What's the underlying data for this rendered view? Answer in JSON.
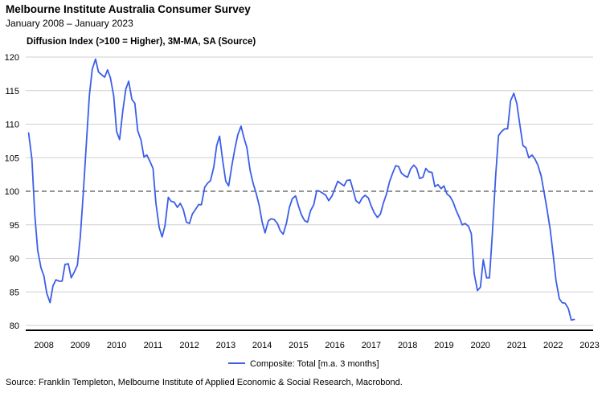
{
  "header": {
    "title": "Melbourne Institute Australia Consumer Survey",
    "subtitle": "January 2008 – January 2023",
    "axis_caption": "Diffusion Index (>100 = Higher), 3M-MA, SA (Source)"
  },
  "footer": {
    "source": "Source: Franklin Templeton, Melbourne Institute of Applied Economic & Social Research, Macrobond."
  },
  "colors": {
    "series": "#3b5ee8",
    "reference": "#555555",
    "grid": "#cfcfcf",
    "axis": "#000000"
  },
  "chart_data": {
    "type": "line",
    "title": "Melbourne Institute Australia Consumer Survey",
    "xlabel": "",
    "ylabel": "Diffusion Index (>100 = Higher), 3M-MA, SA (Source)",
    "xlim": [
      2007.5,
      2023.1
    ],
    "ylim": [
      80,
      120
    ],
    "yticks": [
      80,
      85,
      90,
      95,
      100,
      105,
      110,
      115,
      120
    ],
    "xticks": [
      2008,
      2009,
      2010,
      2011,
      2012,
      2013,
      2014,
      2015,
      2016,
      2017,
      2018,
      2019,
      2020,
      2021,
      2022,
      2023
    ],
    "reference_line": {
      "y": 100,
      "style": "dashed"
    },
    "legend": {
      "position": "bottom-center"
    },
    "series": [
      {
        "name": "Composite: Total [m.a. 3 months]",
        "points": [
          [
            2007.58,
            108.7
          ],
          [
            2007.67,
            104.8
          ],
          [
            2007.75,
            96.5
          ],
          [
            2007.83,
            91.2
          ],
          [
            2007.92,
            88.6
          ],
          [
            2008.0,
            87.4
          ],
          [
            2008.08,
            84.8
          ],
          [
            2008.17,
            83.4
          ],
          [
            2008.25,
            85.9
          ],
          [
            2008.33,
            86.8
          ],
          [
            2008.42,
            86.6
          ],
          [
            2008.5,
            86.6
          ],
          [
            2008.58,
            89.1
          ],
          [
            2008.67,
            89.2
          ],
          [
            2008.75,
            87.1
          ],
          [
            2008.83,
            87.9
          ],
          [
            2008.92,
            89.0
          ],
          [
            2009.0,
            93.2
          ],
          [
            2009.08,
            99.5
          ],
          [
            2009.17,
            107.4
          ],
          [
            2009.25,
            114.3
          ],
          [
            2009.33,
            118.2
          ],
          [
            2009.42,
            119.7
          ],
          [
            2009.5,
            117.8
          ],
          [
            2009.58,
            117.4
          ],
          [
            2009.67,
            117.0
          ],
          [
            2009.75,
            118.1
          ],
          [
            2009.83,
            116.9
          ],
          [
            2009.92,
            114.2
          ],
          [
            2010.0,
            108.9
          ],
          [
            2010.08,
            107.7
          ],
          [
            2010.17,
            112.0
          ],
          [
            2010.25,
            115.2
          ],
          [
            2010.33,
            116.4
          ],
          [
            2010.42,
            113.7
          ],
          [
            2010.5,
            113.1
          ],
          [
            2010.58,
            109.0
          ],
          [
            2010.67,
            107.6
          ],
          [
            2010.75,
            105.1
          ],
          [
            2010.83,
            105.4
          ],
          [
            2010.92,
            104.4
          ],
          [
            2011.0,
            103.4
          ],
          [
            2011.08,
            98.2
          ],
          [
            2011.17,
            94.6
          ],
          [
            2011.25,
            93.2
          ],
          [
            2011.33,
            94.9
          ],
          [
            2011.42,
            99.1
          ],
          [
            2011.5,
            98.5
          ],
          [
            2011.58,
            98.4
          ],
          [
            2011.67,
            97.6
          ],
          [
            2011.75,
            98.2
          ],
          [
            2011.83,
            97.3
          ],
          [
            2011.92,
            95.4
          ],
          [
            2012.0,
            95.2
          ],
          [
            2012.08,
            96.6
          ],
          [
            2012.17,
            97.3
          ],
          [
            2012.25,
            98.0
          ],
          [
            2012.33,
            98.0
          ],
          [
            2012.42,
            100.6
          ],
          [
            2012.5,
            101.2
          ],
          [
            2012.58,
            101.6
          ],
          [
            2012.67,
            103.6
          ],
          [
            2012.75,
            106.8
          ],
          [
            2012.83,
            108.2
          ],
          [
            2012.92,
            104.4
          ],
          [
            2013.0,
            101.5
          ],
          [
            2013.08,
            100.8
          ],
          [
            2013.17,
            103.9
          ],
          [
            2013.25,
            106.3
          ],
          [
            2013.33,
            108.4
          ],
          [
            2013.42,
            109.7
          ],
          [
            2013.5,
            108.0
          ],
          [
            2013.58,
            106.5
          ],
          [
            2013.67,
            103.1
          ],
          [
            2013.75,
            101.2
          ],
          [
            2013.83,
            99.8
          ],
          [
            2013.92,
            97.9
          ],
          [
            2014.0,
            95.4
          ],
          [
            2014.08,
            93.8
          ],
          [
            2014.17,
            95.6
          ],
          [
            2014.25,
            95.9
          ],
          [
            2014.33,
            95.8
          ],
          [
            2014.42,
            95.2
          ],
          [
            2014.5,
            94.1
          ],
          [
            2014.58,
            93.6
          ],
          [
            2014.67,
            95.3
          ],
          [
            2014.75,
            97.6
          ],
          [
            2014.83,
            98.9
          ],
          [
            2014.92,
            99.3
          ],
          [
            2015.0,
            97.8
          ],
          [
            2015.08,
            96.5
          ],
          [
            2015.17,
            95.6
          ],
          [
            2015.25,
            95.4
          ],
          [
            2015.33,
            97.1
          ],
          [
            2015.42,
            98.0
          ],
          [
            2015.5,
            100.1
          ],
          [
            2015.58,
            100.0
          ],
          [
            2015.67,
            99.7
          ],
          [
            2015.75,
            99.4
          ],
          [
            2015.83,
            98.6
          ],
          [
            2015.92,
            99.3
          ],
          [
            2016.0,
            100.4
          ],
          [
            2016.08,
            101.5
          ],
          [
            2016.17,
            101.1
          ],
          [
            2016.25,
            100.8
          ],
          [
            2016.33,
            101.6
          ],
          [
            2016.42,
            101.7
          ],
          [
            2016.5,
            100.2
          ],
          [
            2016.58,
            98.6
          ],
          [
            2016.67,
            98.2
          ],
          [
            2016.75,
            99.0
          ],
          [
            2016.83,
            99.4
          ],
          [
            2016.92,
            99.0
          ],
          [
            2017.0,
            97.8
          ],
          [
            2017.08,
            96.8
          ],
          [
            2017.17,
            96.1
          ],
          [
            2017.25,
            96.6
          ],
          [
            2017.33,
            98.2
          ],
          [
            2017.42,
            99.6
          ],
          [
            2017.5,
            101.4
          ],
          [
            2017.58,
            102.6
          ],
          [
            2017.67,
            103.8
          ],
          [
            2017.75,
            103.7
          ],
          [
            2017.83,
            102.7
          ],
          [
            2017.92,
            102.3
          ],
          [
            2018.0,
            102.1
          ],
          [
            2018.08,
            103.3
          ],
          [
            2018.17,
            103.9
          ],
          [
            2018.25,
            103.4
          ],
          [
            2018.33,
            101.9
          ],
          [
            2018.42,
            102.1
          ],
          [
            2018.5,
            103.4
          ],
          [
            2018.58,
            102.9
          ],
          [
            2018.67,
            102.8
          ],
          [
            2018.75,
            100.7
          ],
          [
            2018.83,
            101.0
          ],
          [
            2018.92,
            100.4
          ],
          [
            2019.0,
            100.8
          ],
          [
            2019.08,
            99.6
          ],
          [
            2019.17,
            99.2
          ],
          [
            2019.25,
            98.4
          ],
          [
            2019.33,
            97.2
          ],
          [
            2019.42,
            96.1
          ],
          [
            2019.5,
            95.0
          ],
          [
            2019.58,
            95.2
          ],
          [
            2019.67,
            94.8
          ],
          [
            2019.75,
            93.7
          ],
          [
            2019.83,
            87.7
          ],
          [
            2019.92,
            85.2
          ],
          [
            2020.0,
            85.7
          ],
          [
            2020.08,
            89.8
          ],
          [
            2020.17,
            87.1
          ],
          [
            2020.25,
            87.1
          ],
          [
            2020.33,
            93.7
          ],
          [
            2020.42,
            102.3
          ],
          [
            2020.5,
            108.3
          ],
          [
            2020.58,
            108.9
          ],
          [
            2020.67,
            109.3
          ],
          [
            2020.75,
            109.3
          ],
          [
            2020.83,
            113.5
          ],
          [
            2020.92,
            114.6
          ],
          [
            2021.0,
            113.1
          ],
          [
            2021.08,
            110.1
          ],
          [
            2021.17,
            106.8
          ],
          [
            2021.25,
            106.5
          ],
          [
            2021.33,
            105.0
          ],
          [
            2021.42,
            105.4
          ],
          [
            2021.5,
            104.8
          ],
          [
            2021.58,
            103.9
          ],
          [
            2021.67,
            102.3
          ],
          [
            2021.75,
            99.9
          ],
          [
            2021.83,
            97.4
          ],
          [
            2021.92,
            94.3
          ],
          [
            2022.0,
            90.6
          ],
          [
            2022.08,
            86.7
          ],
          [
            2022.17,
            84.0
          ],
          [
            2022.25,
            83.4
          ],
          [
            2022.33,
            83.3
          ],
          [
            2022.42,
            82.5
          ],
          [
            2022.5,
            80.8
          ],
          [
            2022.58,
            80.9
          ]
        ]
      }
    ]
  }
}
